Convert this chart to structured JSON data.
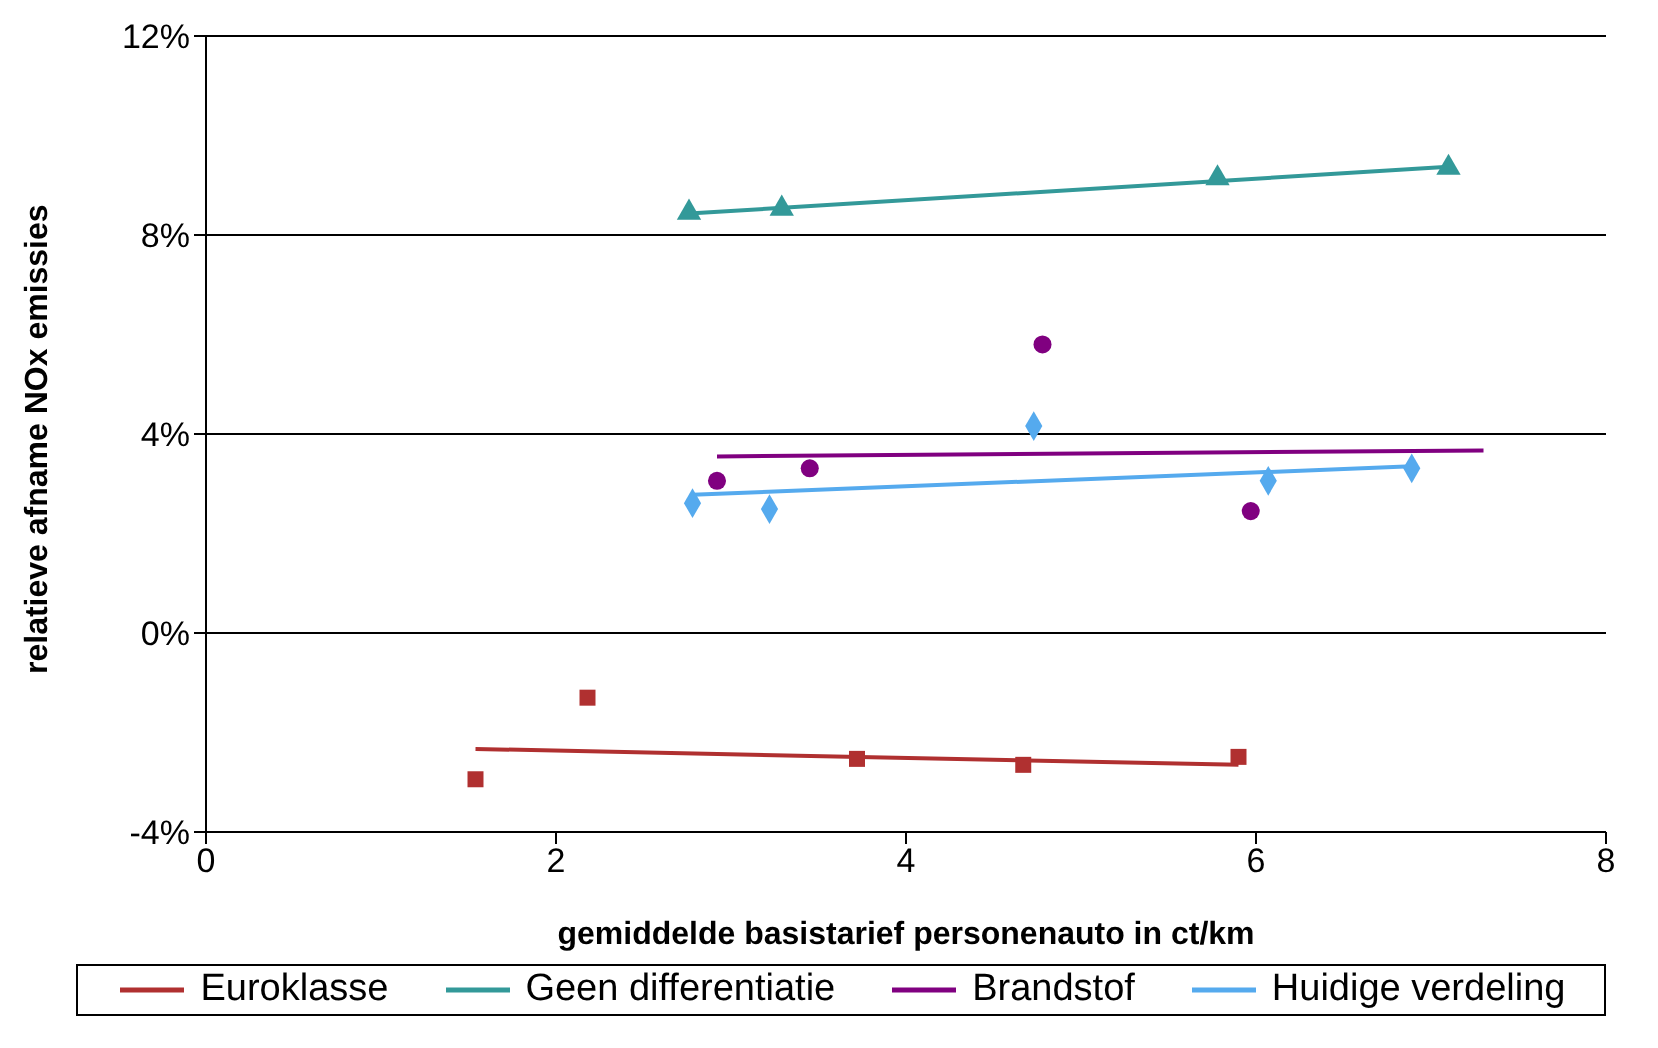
{
  "chart_data": {
    "type": "scatter",
    "xlabel": "gemiddelde basistarief personenauto in ct/km",
    "ylabel": "relatieve afname NOx emissies",
    "xlim": [
      0,
      8
    ],
    "xticks": [
      0,
      2,
      4,
      6,
      8
    ],
    "ylim": [
      -4,
      12
    ],
    "yticks": [
      {
        "value": -4,
        "label": "-4%"
      },
      {
        "value": 0,
        "label": "0%"
      },
      {
        "value": 4,
        "label": "4%"
      },
      {
        "value": 8,
        "label": "8%"
      },
      {
        "value": 12,
        "label": "12%"
      }
    ],
    "grid": "y",
    "legend": "bottom",
    "series": [
      {
        "color": "#b03030",
        "marker": "square",
        "x": [
          1.54,
          2.18,
          3.72,
          4.67,
          5.9
        ],
        "values": [
          -2.94,
          -1.3,
          -2.53,
          -2.65,
          -2.49
        ]
      },
      {
        "type": "line",
        "name": "Euroklasse",
        "color": "#b03030",
        "marker": "none",
        "x": [
          1.54,
          5.9
        ],
        "values": [
          -2.33,
          -2.65
        ]
      },
      {
        "color": "#339999",
        "marker": "triangle",
        "x": [
          2.76,
          3.29,
          5.78,
          7.1
        ],
        "values": [
          8.45,
          8.53,
          9.14,
          9.35
        ]
      },
      {
        "type": "line",
        "name": "Geen differentiatie",
        "color": "#339999",
        "marker": "none",
        "x": [
          2.76,
          7.1
        ],
        "values": [
          8.43,
          9.37
        ]
      },
      {
        "color": "#800080",
        "marker": "circle",
        "x": [
          2.92,
          3.45,
          4.78,
          5.97
        ],
        "values": [
          3.06,
          3.31,
          5.8,
          2.45
        ]
      },
      {
        "type": "line",
        "name": "Brandstof",
        "color": "#800080",
        "marker": "none",
        "x": [
          2.92,
          7.3
        ],
        "values": [
          3.55,
          3.67
        ]
      },
      {
        "color": "#55aaee",
        "marker": "diamond",
        "x": [
          2.78,
          3.22,
          4.73,
          6.07,
          6.89
        ],
        "values": [
          2.61,
          2.49,
          4.16,
          3.06,
          3.31
        ]
      },
      {
        "type": "line",
        "name": "Huidige verdeling",
        "color": "#55aaee",
        "marker": "none",
        "x": [
          2.78,
          6.89
        ],
        "values": [
          2.78,
          3.35
        ]
      }
    ]
  }
}
